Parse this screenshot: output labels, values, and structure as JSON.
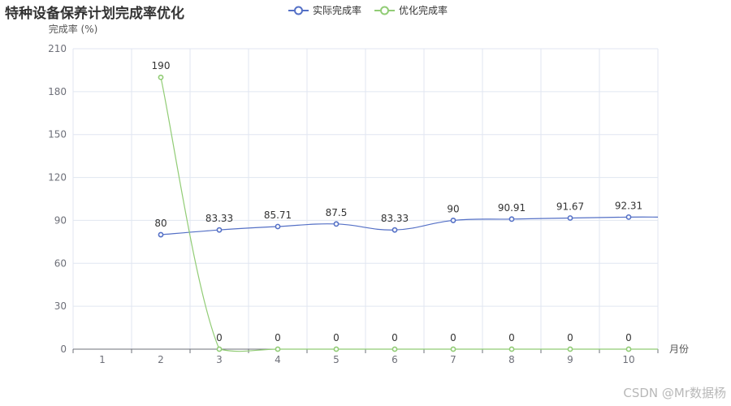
{
  "chart_data": {
    "type": "line",
    "title": "特种设备保养计划完成率优化",
    "ylabel": "完成率 (%)",
    "xlabel": "月份",
    "categories": [
      "1",
      "2",
      "3",
      "4",
      "5",
      "6",
      "7",
      "8",
      "9",
      "10"
    ],
    "ylim": [
      0,
      210
    ],
    "yticks": [
      0,
      30,
      60,
      90,
      120,
      150,
      180,
      210
    ],
    "grid": true,
    "smooth": true,
    "legend_position": "top-center",
    "series": [
      {
        "name": "实际完成率",
        "color": "#5470c6",
        "values": [
          null,
          80,
          83.33,
          85.71,
          87.5,
          83.33,
          90,
          90.91,
          91.67,
          92.31
        ]
      },
      {
        "name": "优化完成率",
        "color": "#91cc75",
        "values": [
          null,
          190,
          0,
          0,
          0,
          0,
          0,
          0,
          0,
          0
        ]
      }
    ],
    "watermark": "CSDN @Mr数据杨"
  }
}
